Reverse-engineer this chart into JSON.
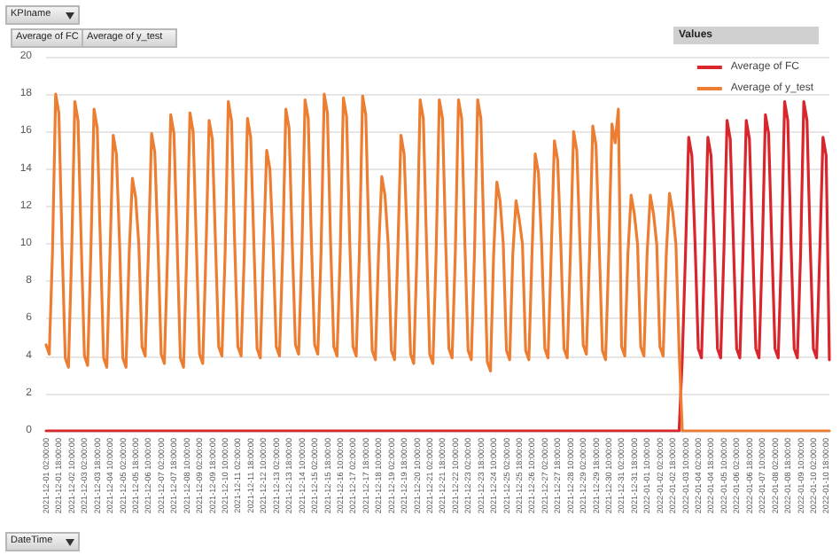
{
  "chart_data": {
    "type": "line",
    "legend_title": "Values",
    "legend": "top right",
    "grid": "y",
    "marker": "none",
    "line_style": "solid",
    "annotations": [
      "KPIname",
      "Average of FC",
      "Average of y_test",
      "DateTime"
    ],
    "ylim": [
      0,
      20
    ],
    "yticks": [
      0,
      2,
      4,
      6,
      8,
      10,
      12,
      14,
      16,
      18,
      20
    ],
    "categories": [
      "2021-12-01 02:00:00",
      null,
      null,
      null,
      "2021-12-01 18:00:00",
      null,
      null,
      null,
      "2021-12-02 10:00:00",
      null,
      null,
      null,
      "2021-12-03 02:00:00",
      null,
      null,
      null,
      "2021-12-03 18:00:00",
      null,
      null,
      null,
      "2021-12-04 10:00:00",
      null,
      null,
      null,
      "2021-12-05 02:00:00",
      null,
      null,
      null,
      "2021-12-05 18:00:00",
      null,
      null,
      null,
      "2021-12-06 10:00:00",
      null,
      null,
      null,
      "2021-12-07 02:00:00",
      null,
      null,
      null,
      "2021-12-07 18:00:00",
      null,
      null,
      null,
      "2021-12-08 10:00:00",
      null,
      null,
      null,
      "2021-12-09 02:00:00",
      null,
      null,
      null,
      "2021-12-09 18:00:00",
      null,
      null,
      null,
      "2021-12-10 10:00:00",
      null,
      null,
      null,
      "2021-12-11 02:00:00",
      null,
      null,
      null,
      "2021-12-11 18:00:00",
      null,
      null,
      null,
      "2021-12-12 10:00:00",
      null,
      null,
      null,
      "2021-12-13 02:00:00",
      null,
      null,
      null,
      "2021-12-13 18:00:00",
      null,
      null,
      null,
      "2021-12-14 10:00:00",
      null,
      null,
      null,
      "2021-12-15 02:00:00",
      null,
      null,
      null,
      "2021-12-15 18:00:00",
      null,
      null,
      null,
      "2021-12-16 10:00:00",
      null,
      null,
      null,
      "2021-12-17 02:00:00",
      null,
      null,
      null,
      "2021-12-17 18:00:00",
      null,
      null,
      null,
      "2021-12-18 10:00:00",
      null,
      null,
      null,
      "2021-12-19 02:00:00",
      null,
      null,
      null,
      "2021-12-19 18:00:00",
      null,
      null,
      null,
      "2021-12-20 10:00:00",
      null,
      null,
      null,
      "2021-12-21 02:00:00",
      null,
      null,
      null,
      "2021-12-21 18:00:00",
      null,
      null,
      null,
      "2021-12-22 10:00:00",
      null,
      null,
      null,
      "2021-12-23 02:00:00",
      null,
      null,
      null,
      "2021-12-23 18:00:00",
      null,
      null,
      null,
      "2021-12-24 10:00:00",
      null,
      null,
      null,
      "2021-12-25 02:00:00",
      null,
      null,
      null,
      "2021-12-25 18:00:00",
      null,
      null,
      null,
      "2021-12-26 10:00:00",
      null,
      null,
      null,
      "2021-12-27 02:00:00",
      null,
      null,
      null,
      "2021-12-27 18:00:00",
      null,
      null,
      null,
      "2021-12-28 10:00:00",
      null,
      null,
      null,
      "2021-12-29 02:00:00",
      null,
      null,
      null,
      "2021-12-29 18:00:00",
      null,
      null,
      null,
      "2021-12-30 10:00:00",
      null,
      null,
      null,
      "2021-12-31 02:00:00",
      null,
      null,
      null,
      "2021-12-31 18:00:00",
      null,
      null,
      null,
      "2022-01-01 10:00:00",
      null,
      null,
      null,
      "2022-01-02 02:00:00",
      null,
      null,
      null,
      "2022-01-02 18:00:00",
      null,
      null,
      null,
      "2022-01-03 10:00:00",
      null,
      null,
      null,
      "2022-01-04 02:00:00",
      null,
      null,
      null,
      "2022-01-04 18:00:00",
      null,
      null,
      null,
      "2022-01-05 10:00:00",
      null,
      null,
      null,
      "2022-01-06 02:00:00",
      null,
      null,
      null,
      "2022-01-06 18:00:00",
      null,
      null,
      null,
      "2022-01-07 10:00:00",
      null,
      null,
      null,
      "2022-01-08 02:00:00",
      null,
      null,
      null,
      "2022-01-08 18:00:00",
      null,
      null,
      null,
      "2022-01-09 10:00:00",
      null,
      null,
      null,
      "2022-01-10 02:00:00",
      null,
      null,
      null,
      "2022-01-10 18:00:00",
      null
    ],
    "series": [
      {
        "name": "Average of FC",
        "color": "#d9262c",
        "values": [
          0,
          0,
          0,
          0,
          0,
          0,
          0,
          0,
          0,
          0,
          0,
          0,
          0,
          0,
          0,
          0,
          0,
          0,
          0,
          0,
          0,
          0,
          0,
          0,
          0,
          0,
          0,
          0,
          0,
          0,
          0,
          0,
          0,
          0,
          0,
          0,
          0,
          0,
          0,
          0,
          0,
          0,
          0,
          0,
          0,
          0,
          0,
          0,
          0,
          0,
          0,
          0,
          0,
          0,
          0,
          0,
          0,
          0,
          0,
          0,
          0,
          0,
          0,
          0,
          0,
          0,
          0,
          0,
          0,
          0,
          0,
          0,
          0,
          0,
          0,
          0,
          0,
          0,
          0,
          0,
          0,
          0,
          0,
          0,
          0,
          0,
          0,
          0,
          0,
          0,
          0,
          0,
          0,
          0,
          0,
          0,
          0,
          0,
          0,
          0,
          0,
          0,
          0,
          0,
          0,
          0,
          0,
          0,
          0,
          0,
          0,
          0,
          0,
          0,
          0,
          0,
          0,
          0,
          0,
          0,
          0,
          0,
          0,
          0,
          0,
          0,
          0,
          0,
          0,
          0,
          0,
          0,
          0,
          0,
          0,
          0,
          0,
          0,
          0,
          0,
          0,
          0,
          0,
          0,
          0,
          0,
          0,
          0,
          0,
          0,
          0,
          0,
          0,
          0,
          0,
          0,
          0,
          0,
          0,
          0,
          0,
          0,
          0,
          0,
          0,
          0,
          0,
          0,
          0,
          0,
          0,
          0,
          0,
          0,
          0,
          0,
          0,
          0,
          0,
          0,
          0,
          0,
          0,
          0,
          0,
          0,
          0,
          0,
          0,
          0,
          0,
          0,
          0,
          0,
          0,
          0,
          0,
          0,
          0,
          3.9,
          9.5,
          15.7,
          14.7,
          10.0,
          4.4,
          3.9,
          9.5,
          15.7,
          14.7,
          10.0,
          4.4,
          3.9,
          9.5,
          16.6,
          15.6,
          10.0,
          4.4,
          3.9,
          9.5,
          16.6,
          15.6,
          10.0,
          4.4,
          3.9,
          9.5,
          16.9,
          15.9,
          10.0,
          4.4,
          3.9,
          9.5,
          17.6,
          16.6,
          10.0,
          4.4,
          3.9,
          9.5,
          17.6,
          16.6,
          10.0,
          4.4,
          3.9,
          9.5,
          15.7,
          14.7,
          3.8
        ]
      },
      {
        "name": "Average of y_test",
        "color": "#ed7d31",
        "values": [
          4.6,
          4.1,
          9.5,
          18.0,
          17.0,
          10.0,
          3.9,
          3.4,
          9.5,
          17.6,
          16.6,
          10.0,
          4.0,
          3.5,
          9.5,
          17.2,
          16.2,
          10.0,
          3.9,
          3.4,
          9.5,
          15.8,
          14.8,
          10.0,
          3.9,
          3.4,
          9.5,
          13.5,
          12.5,
          10.0,
          4.5,
          4.0,
          9.5,
          15.9,
          14.9,
          10.0,
          4.1,
          3.6,
          9.5,
          16.9,
          15.9,
          10.0,
          3.9,
          3.4,
          9.5,
          17.0,
          16.0,
          10.0,
          4.1,
          3.6,
          9.5,
          16.6,
          15.6,
          10.0,
          4.5,
          4.0,
          9.5,
          17.6,
          16.6,
          10.0,
          4.5,
          4.0,
          9.5,
          16.7,
          15.7,
          10.0,
          4.4,
          3.9,
          9.5,
          15.0,
          14.0,
          10.0,
          4.5,
          4.0,
          9.5,
          17.2,
          16.2,
          10.0,
          4.6,
          4.1,
          9.5,
          17.7,
          16.7,
          10.0,
          4.6,
          4.1,
          9.5,
          18.0,
          17.0,
          10.0,
          4.5,
          4.0,
          9.5,
          17.8,
          16.8,
          10.0,
          4.5,
          4.0,
          9.5,
          17.9,
          16.9,
          10.0,
          4.3,
          3.8,
          9.5,
          13.6,
          12.6,
          10.0,
          4.3,
          3.8,
          9.5,
          15.8,
          14.8,
          10.0,
          4.1,
          3.6,
          9.5,
          17.7,
          16.7,
          10.0,
          4.1,
          3.6,
          9.5,
          17.7,
          16.7,
          10.0,
          4.4,
          3.9,
          9.5,
          17.7,
          16.7,
          10.0,
          4.3,
          3.8,
          9.5,
          17.7,
          16.7,
          10.0,
          3.7,
          3.2,
          9.5,
          13.3,
          12.3,
          10.0,
          4.3,
          3.8,
          9.5,
          12.3,
          11.3,
          10.0,
          4.3,
          3.8,
          9.5,
          14.8,
          13.8,
          10.0,
          4.4,
          3.9,
          9.5,
          15.5,
          14.5,
          10.0,
          4.4,
          3.9,
          9.5,
          16.0,
          15.0,
          10.0,
          4.6,
          4.1,
          9.5,
          16.3,
          15.3,
          10.0,
          4.3,
          3.8,
          9.5,
          16.4,
          15.4,
          17.2,
          4.5,
          4.0,
          9.5,
          12.6,
          11.6,
          10.0,
          4.5,
          4.0,
          9.5,
          12.6,
          11.6,
          10.0,
          4.5,
          4.0,
          9.5,
          12.7,
          11.7,
          10.0,
          4.3,
          0,
          0,
          0,
          0,
          0,
          0,
          0,
          0,
          0,
          0,
          0,
          0,
          0,
          0,
          0,
          0,
          0,
          0,
          0,
          0,
          0,
          0,
          0,
          0,
          0,
          0,
          0,
          0,
          0,
          0,
          0,
          0,
          0,
          0,
          0,
          0,
          0,
          0,
          0,
          0,
          0,
          0,
          0,
          0,
          0,
          0,
          0
        ]
      }
    ]
  }
}
